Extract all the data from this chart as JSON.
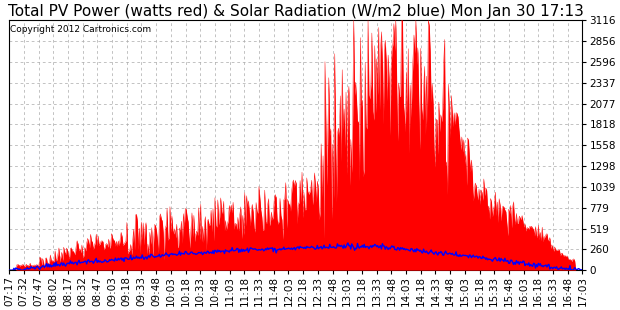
{
  "title": "Total PV Power (watts red) & Solar Radiation (W/m2 blue) Mon Jan 30 17:13",
  "copyright": "Copyright 2012 Cartronics.com",
  "yticks": [
    0.0,
    259.7,
    519.3,
    779.0,
    1038.6,
    1298.3,
    1557.9,
    1817.6,
    2077.2,
    2336.9,
    2596.5,
    2856.2,
    3115.8
  ],
  "ylim": [
    0.0,
    3115.8
  ],
  "xtick_labels": [
    "07:17",
    "07:32",
    "07:47",
    "08:02",
    "08:17",
    "08:32",
    "08:47",
    "09:03",
    "09:18",
    "09:33",
    "09:48",
    "10:03",
    "10:18",
    "10:33",
    "10:48",
    "11:03",
    "11:18",
    "11:33",
    "11:48",
    "12:03",
    "12:18",
    "12:33",
    "12:48",
    "13:03",
    "13:18",
    "13:33",
    "13:48",
    "14:03",
    "14:18",
    "14:33",
    "14:48",
    "15:03",
    "15:18",
    "15:33",
    "15:48",
    "16:03",
    "16:18",
    "16:33",
    "16:48",
    "17:03"
  ],
  "pv_color": "#ff0000",
  "solar_color": "#0000ff",
  "bg_color": "#ffffff",
  "grid_color": "#aaaaaa",
  "title_fontsize": 11,
  "copyright_fontsize": 6.5,
  "tick_fontsize": 7.5
}
